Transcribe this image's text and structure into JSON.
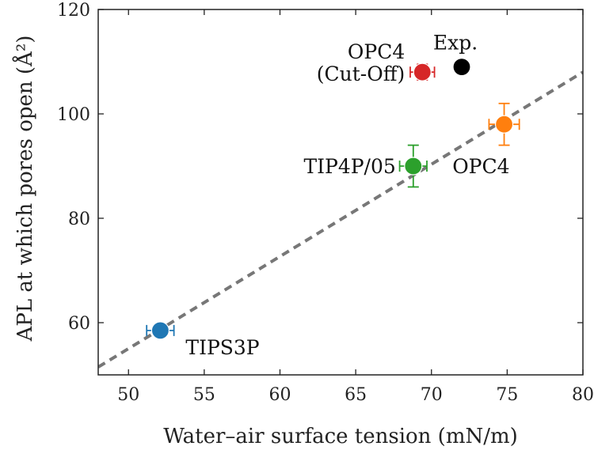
{
  "chart_data": {
    "type": "scatter",
    "xlabel": "Water–air surface tension (mN/m)",
    "ylabel": "APL at which pores open (Å²)",
    "xlim": [
      48,
      80
    ],
    "ylim": [
      50,
      120
    ],
    "x_ticks": [
      50,
      55,
      60,
      65,
      70,
      75,
      80
    ],
    "y_ticks": [
      60,
      80,
      100,
      120
    ],
    "grid": false,
    "points": [
      {
        "name": "TIPS3P",
        "label_lines": [
          "TIPS3P"
        ],
        "x": 52.1,
        "y": 58.5,
        "xerr": 0.9,
        "yerr": 0,
        "color": "#1f77b4",
        "label_pos": "lower-right"
      },
      {
        "name": "TIP4P/05",
        "label_lines": [
          "TIP4P/05"
        ],
        "x": 68.8,
        "y": 90,
        "xerr": 0.9,
        "yerr": 4,
        "color": "#2ca02c",
        "label_pos": "left"
      },
      {
        "name": "OPC4",
        "label_lines": [
          "OPC4"
        ],
        "x": 74.8,
        "y": 98,
        "xerr": 1.0,
        "yerr": 4,
        "color": "#ff7f0e",
        "label_pos": "lower-left"
      },
      {
        "name": "OPC4 (Cut-Off)",
        "label_lines": [
          "OPC4",
          "(Cut-Off)"
        ],
        "x": 69.4,
        "y": 108,
        "xerr": 0.8,
        "yerr": 1.5,
        "color": "#d62728",
        "label_pos": "left"
      },
      {
        "name": "Exp.",
        "label_lines": [
          "Exp."
        ],
        "x": 72.0,
        "y": 109,
        "xerr": 0,
        "yerr": 0,
        "color": "#000000",
        "label_pos": "top"
      }
    ],
    "fit_line": {
      "style": "dashed",
      "color": "#777777",
      "x": [
        48,
        80
      ],
      "y": [
        51.5,
        108
      ]
    }
  }
}
